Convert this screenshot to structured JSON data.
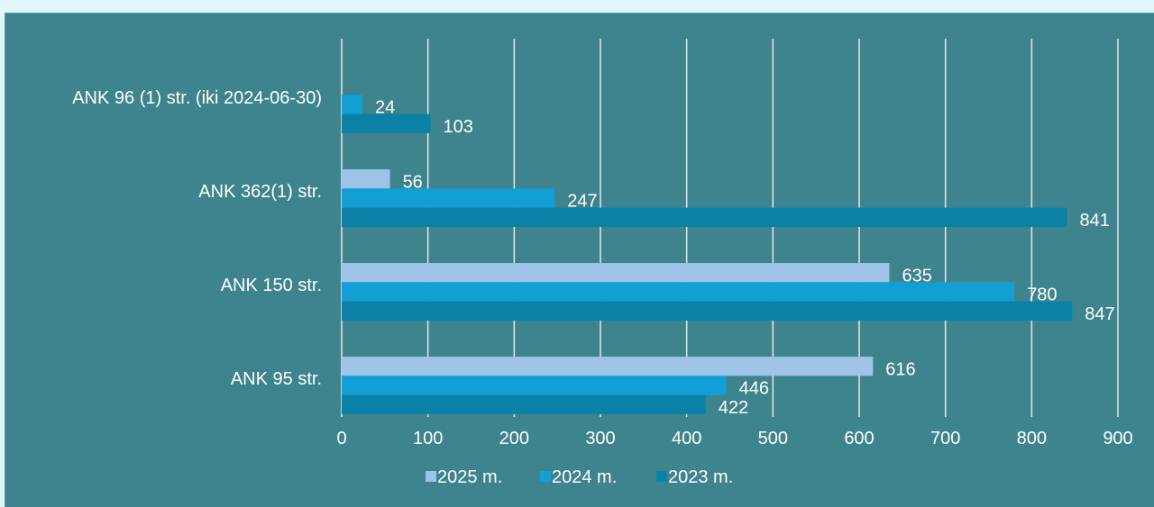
{
  "chart_data": {
    "type": "bar",
    "orientation": "horizontal",
    "categories": [
      "ANK 96 (1) str. (iki 2024-06-30)",
      "ANK 362(1) str.",
      "ANK 150 str.",
      "ANK 95 str."
    ],
    "series": [
      {
        "name": "2025 m.",
        "color": "#9dc3e6",
        "values": [
          null,
          56,
          635,
          616
        ]
      },
      {
        "name": "2024 m.",
        "color": "#129fd6",
        "values": [
          24,
          247,
          780,
          446
        ]
      },
      {
        "name": "2023 m.",
        "color": "#0c81a8",
        "values": [
          103,
          841,
          847,
          422
        ]
      }
    ],
    "x_ticks": [
      "0",
      "100",
      "200",
      "300",
      "400",
      "500",
      "600",
      "700",
      "800",
      "900"
    ],
    "xlim": [
      0,
      900
    ],
    "grid": true,
    "legend_position": "bottom",
    "title": "",
    "xlabel": "",
    "ylabel": ""
  }
}
